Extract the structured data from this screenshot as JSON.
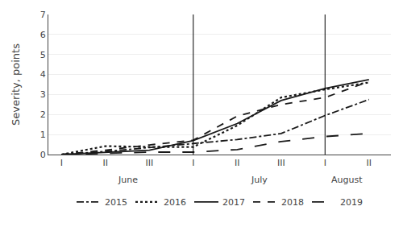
{
  "chart_data": {
    "type": "line",
    "ylabel": "Severity, points",
    "xlim": [
      -3,
      75
    ],
    "xticks": [
      {
        "value": 0,
        "label": "I"
      },
      {
        "value": 10,
        "label": "II"
      },
      {
        "value": 20,
        "label": "III"
      },
      {
        "value": 30,
        "label": "I"
      },
      {
        "value": 40,
        "label": "II"
      },
      {
        "value": 50,
        "label": "III"
      },
      {
        "value": 60,
        "label": "I"
      },
      {
        "value": 70,
        "label": "II"
      }
    ],
    "ylim": [
      0,
      7
    ],
    "yticks": [
      0,
      1,
      2,
      3,
      4,
      5,
      6,
      7
    ],
    "grid": "y",
    "legend": "bottom",
    "x": [
      0,
      10,
      20,
      30,
      40,
      50,
      60,
      70
    ],
    "series": [
      {
        "name": "2015",
        "color": "#1a1a1a",
        "line_style": "dashdot",
        "values": [
          0.0,
          0.15,
          0.35,
          0.55,
          0.75,
          1.05,
          1.95,
          2.75
        ]
      },
      {
        "name": "2016",
        "color": "#1a1a1a",
        "line_style": "dotted",
        "values": [
          0.0,
          0.42,
          0.38,
          0.38,
          1.45,
          2.85,
          3.25,
          3.6
        ]
      },
      {
        "name": "2017",
        "color": "#1a1a1a",
        "line_style": "solid",
        "values": [
          0.0,
          0.1,
          0.22,
          0.7,
          1.55,
          2.7,
          3.3,
          3.75
        ]
      },
      {
        "name": "2018",
        "color": "#1a1a1a",
        "line_style": "dashed",
        "values": [
          0.0,
          0.22,
          0.48,
          0.72,
          1.92,
          2.5,
          2.85,
          3.65
        ]
      },
      {
        "name": "2019",
        "color": "#1a1a1a",
        "line_style": "longdash",
        "values": [
          0.0,
          0.05,
          0.12,
          0.12,
          0.25,
          0.65,
          0.9,
          1.05
        ]
      }
    ],
    "vlines": [
      30,
      60
    ],
    "annotations": [
      {
        "text": "June",
        "x": 15
      },
      {
        "text": "July",
        "x": 45
      },
      {
        "text": "August",
        "x": 65
      }
    ]
  }
}
